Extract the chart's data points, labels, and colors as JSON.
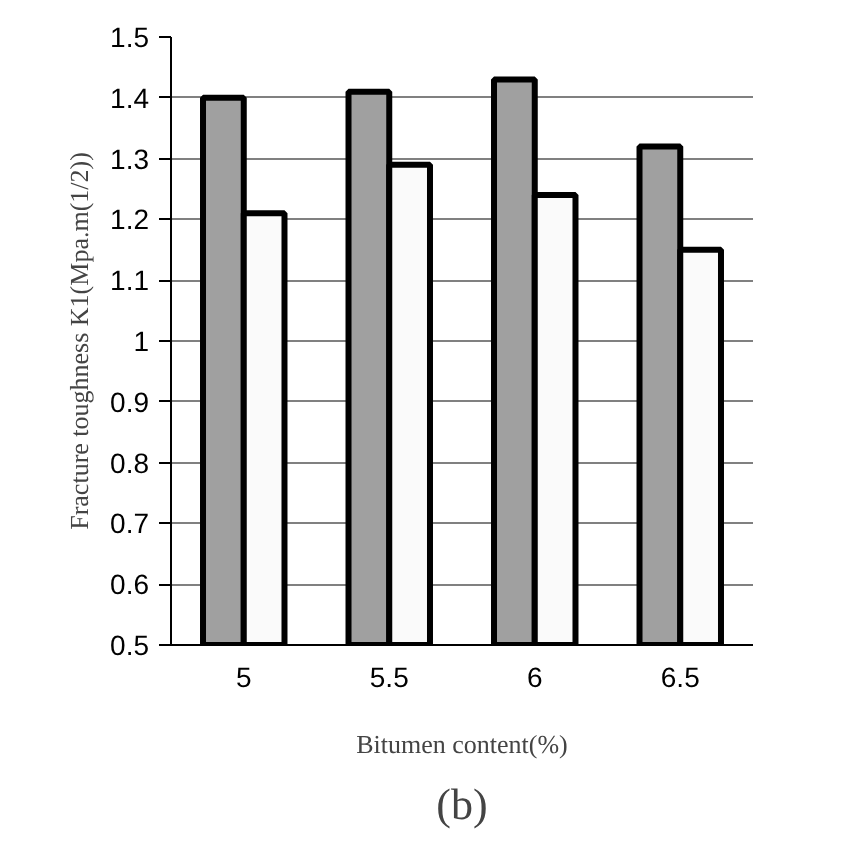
{
  "chart_data": {
    "type": "bar",
    "xlabel": "Bitumen content(%)",
    "ylabel": "Fracture toughness K1(Mpa.m(1/2))",
    "categories": [
      "5",
      "5.5",
      "6",
      "6.5"
    ],
    "series": [
      {
        "color": "#a0a0a0",
        "values": [
          1.4,
          1.41,
          1.43,
          1.32
        ]
      },
      {
        "color": "#fafafa",
        "values": [
          1.21,
          1.29,
          1.24,
          1.15
        ]
      }
    ],
    "ylim": [
      0.5,
      1.5
    ],
    "yticks": [
      0.5,
      0.6,
      0.7,
      0.8,
      0.9,
      1,
      1.1,
      1.2,
      1.3,
      1.4,
      1.5
    ],
    "grid": "y",
    "annotations": [
      "(b)"
    ]
  }
}
